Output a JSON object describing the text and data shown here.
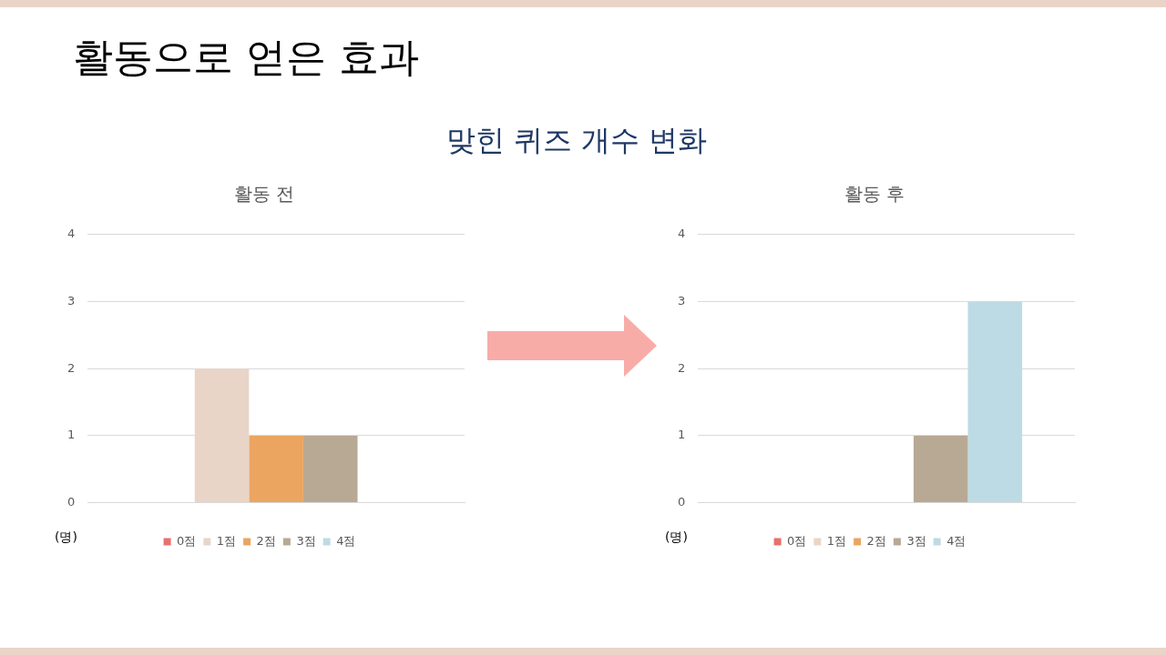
{
  "chart_data": [
    {
      "type": "other",
      "title": "활동으로 얻은 효과",
      "subtitle": "맞힌 퀴즈 개수 변화"
    },
    {
      "type": "bar",
      "title": "활동 전",
      "ylabel": "(명)",
      "categories": [
        null
      ],
      "ylim": [
        0,
        4
      ],
      "yticks": [
        0,
        1,
        2,
        3,
        4
      ],
      "grid": "y",
      "legend": "bottom",
      "series": [
        {
          "name": "0점",
          "color": "#e8716d",
          "values": [
            0
          ]
        },
        {
          "name": "1점",
          "color": "#e8d5c8",
          "values": [
            2
          ]
        },
        {
          "name": "2점",
          "color": "#eba560",
          "values": [
            1
          ]
        },
        {
          "name": "3점",
          "color": "#b8a994",
          "values": [
            1
          ]
        },
        {
          "name": "4점",
          "color": "#bddbe4",
          "values": [
            0
          ]
        }
      ]
    },
    {
      "type": "bar",
      "title": "활동 후",
      "ylabel": "(명)",
      "categories": [
        null
      ],
      "ylim": [
        0,
        4
      ],
      "yticks": [
        0,
        1,
        2,
        3,
        4
      ],
      "grid": "y",
      "legend": "bottom",
      "series": [
        {
          "name": "0점",
          "color": "#e8716d",
          "values": [
            0
          ]
        },
        {
          "name": "1점",
          "color": "#e8d5c8",
          "values": [
            0
          ]
        },
        {
          "name": "2점",
          "color": "#eba560",
          "values": [
            0
          ]
        },
        {
          "name": "3점",
          "color": "#b8a994",
          "values": [
            1
          ]
        },
        {
          "name": "4점",
          "color": "#bddbe4",
          "values": [
            3
          ]
        }
      ]
    }
  ]
}
